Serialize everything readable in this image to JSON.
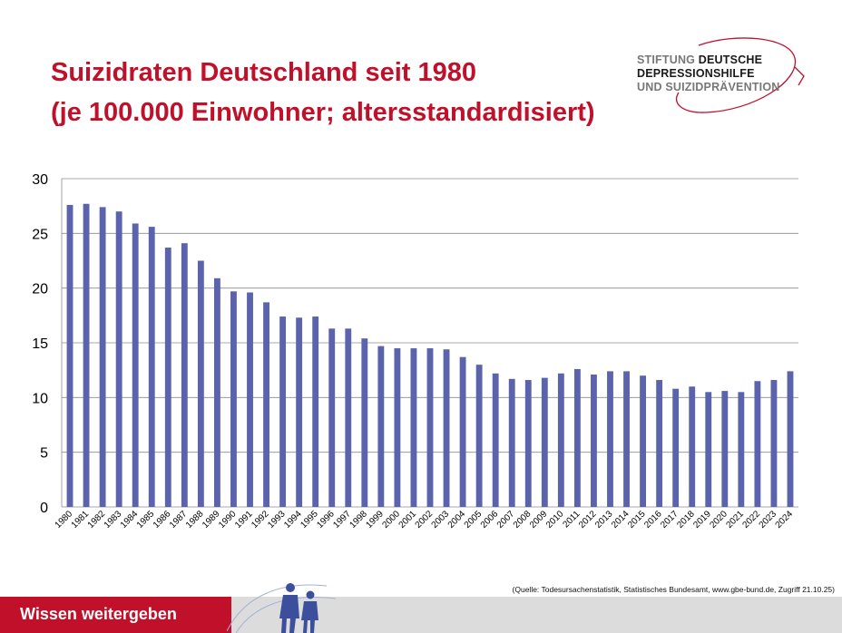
{
  "header": {
    "title_line1": "Suizidraten Deutschland seit 1980",
    "title_line2": "(je 100.000 Einwohner; altersstandardisiert)"
  },
  "logo": {
    "word_stiftung": "STIFTUNG",
    "word_deutsche": "DEUTSCHE",
    "line2": "DEPRESSIONSHILFE",
    "line3": "UND SUIZIDPRÄVENTION"
  },
  "chart_data": {
    "type": "bar",
    "title": "",
    "xlabel": "",
    "ylabel": "",
    "ylim": [
      0,
      30
    ],
    "yticks": [
      0,
      5,
      10,
      15,
      20,
      25,
      30
    ],
    "grid": true,
    "bar_color": "#5b63ad",
    "categories": [
      "1980",
      "1981",
      "1982",
      "1983",
      "1984",
      "1985",
      "1986",
      "1987",
      "1988",
      "1989",
      "1990",
      "1991",
      "1992",
      "1993",
      "1994",
      "1995",
      "1996",
      "1997",
      "1998",
      "1999",
      "2000",
      "2001",
      "2002",
      "2003",
      "2004",
      "2005",
      "2006",
      "2007",
      "2008",
      "2009",
      "2010",
      "2011",
      "2012",
      "2013",
      "2014",
      "2015",
      "2016",
      "2017",
      "2018",
      "2019",
      "2020",
      "2021",
      "2022",
      "2023",
      "2024"
    ],
    "values": [
      27.6,
      27.7,
      27.4,
      27.0,
      25.9,
      25.6,
      23.7,
      24.1,
      22.5,
      20.9,
      19.7,
      19.6,
      18.7,
      17.4,
      17.3,
      17.4,
      16.3,
      16.3,
      15.4,
      14.7,
      14.5,
      14.5,
      14.5,
      14.4,
      13.7,
      13.0,
      12.2,
      11.7,
      11.6,
      11.8,
      12.2,
      12.6,
      12.1,
      12.4,
      12.4,
      12.0,
      11.6,
      10.8,
      11.0,
      10.5,
      10.6,
      10.5,
      11.5,
      11.6,
      12.4
    ]
  },
  "source": "(Quelle: Todesursachenstatistik, Statistisches Bundesamt, www.gbe-bund.de, Zugriff 21.10.25)",
  "footer": {
    "slogan": "Wissen weitergeben"
  }
}
